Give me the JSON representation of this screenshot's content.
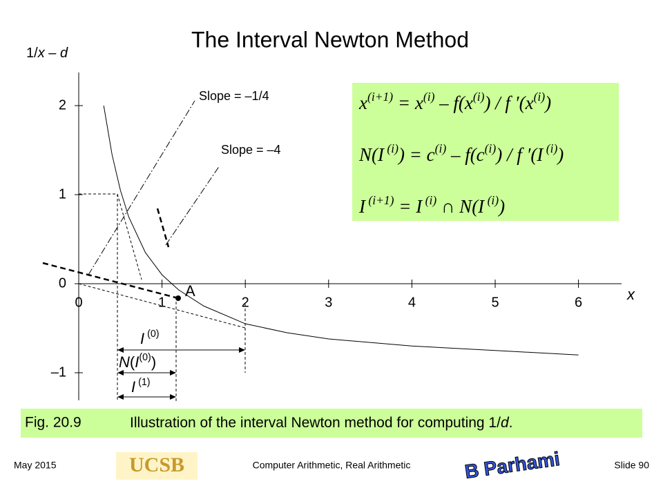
{
  "title": "The Interval Newton Method",
  "chart_data": {
    "type": "line",
    "y_label": [
      {
        "text": "1/"
      },
      {
        "text": "x",
        "italic": true
      },
      {
        "text": " – "
      },
      {
        "text": "d",
        "italic": true
      }
    ],
    "x_label": "x",
    "x": [
      0.3,
      0.4,
      0.5,
      0.6,
      0.8,
      1.0,
      1.2,
      1.5,
      2,
      2.5,
      3,
      4,
      5,
      6
    ],
    "series": [
      {
        "color": "#000000",
        "values": [
          2.0,
          1.45,
          1.05,
          0.75,
          0.35,
          0.1,
          -0.07,
          -0.25,
          -0.45,
          -0.55,
          -0.62,
          -0.7,
          -0.75,
          -0.8
        ]
      }
    ],
    "xlim": [
      0,
      6.5
    ],
    "ylim": [
      -1.3,
      2.4
    ],
    "xticks": [
      0,
      1,
      2,
      3,
      4,
      5,
      6
    ],
    "yticks": [
      {
        "value": -1,
        "label": "–1"
      },
      0,
      1,
      2
    ],
    "annotations": {
      "slope1": "Slope = –1/4",
      "slope2": "Slope = –4",
      "point": "A",
      "i0": [
        {
          "text": "I",
          "italic": true
        },
        {
          "text": " (0)",
          "sup": true
        }
      ],
      "ni0": [
        {
          "text": "N",
          "italic": true
        },
        {
          "text": "("
        },
        {
          "text": "I",
          "italic": true
        },
        {
          "text": "(0)",
          "sup": true
        },
        {
          "text": ")"
        }
      ],
      "i1": [
        {
          "text": "I",
          "italic": true
        },
        {
          "text": " (1)",
          "sup": true
        }
      ]
    }
  },
  "formulas": [
    [
      {
        "text": "x"
      },
      {
        "text": "(i+1)",
        "sup": true
      },
      {
        "text": " = x"
      },
      {
        "text": "(i)",
        "sup": true
      },
      {
        "text": " – f(x"
      },
      {
        "text": "(i)",
        "sup": true
      },
      {
        "text": ") / f ′(x"
      },
      {
        "text": "(i)",
        "sup": true
      },
      {
        "text": ")"
      }
    ],
    [
      {
        "text": "N(I"
      },
      {
        "text": " (i)",
        "sup": true
      },
      {
        "text": ") = c"
      },
      {
        "text": "(i)",
        "sup": true
      },
      {
        "text": " – f(c"
      },
      {
        "text": "(i)",
        "sup": true
      },
      {
        "text": ") / f ′(I"
      },
      {
        "text": " (i)",
        "sup": true
      },
      {
        "text": ")"
      }
    ],
    [
      {
        "text": "I"
      },
      {
        "text": " (i+1)",
        "sup": true
      },
      {
        "text": " = I"
      },
      {
        "text": " (i)",
        "sup": true
      },
      {
        "text": " ∩ N(I"
      },
      {
        "text": " (i)",
        "sup": true
      },
      {
        "text": ")"
      }
    ]
  ],
  "caption": {
    "label": "Fig. 20.9",
    "text": [
      {
        "text": "Illustration of the interval Newton method for computing 1/"
      },
      {
        "text": "d",
        "italic": true
      },
      {
        "text": "."
      }
    ]
  },
  "footer": {
    "date": "May 2015",
    "logo_left": "UCSB",
    "course": "Computer Arithmetic, Real Arithmetic",
    "logo_right": "B Parhami",
    "slide": "Slide 90"
  }
}
